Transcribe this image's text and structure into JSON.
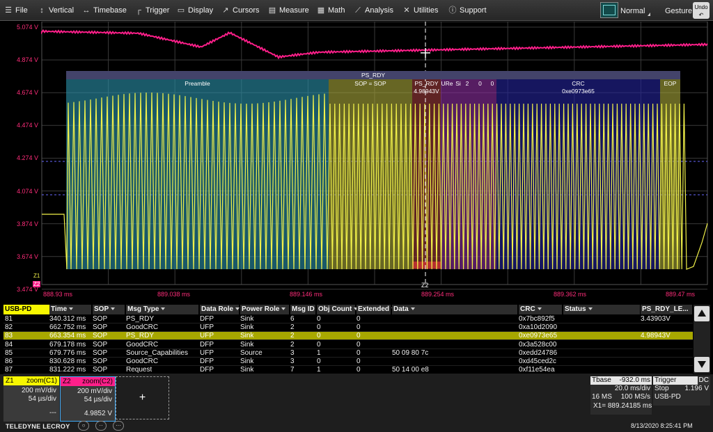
{
  "menu": [
    {
      "label": "File",
      "icon": "menu-icon"
    },
    {
      "label": "Vertical",
      "icon": "vertical-arrows-icon"
    },
    {
      "label": "Timebase",
      "icon": "horizontal-arrows-icon"
    },
    {
      "label": "Trigger",
      "icon": "trigger-icon"
    },
    {
      "label": "Display",
      "icon": "display-icon"
    },
    {
      "label": "Cursors",
      "icon": "cursor-icon"
    },
    {
      "label": "Measure",
      "icon": "ruler-icon"
    },
    {
      "label": "Math",
      "icon": "calculator-icon"
    },
    {
      "label": "Analysis",
      "icon": "chart-icon"
    },
    {
      "label": "Utilities",
      "icon": "wrench-icon"
    },
    {
      "label": "Support",
      "icon": "info-icon"
    }
  ],
  "toolbar": {
    "mode": "Normal",
    "gesture": "Gesture",
    "undo": "Undo"
  },
  "scope": {
    "v_labels": [
      "5.074 V",
      "4.874 V",
      "4.674 V",
      "4.474 V",
      "4.274 V",
      "4.074 V",
      "3.874 V",
      "3.674 V",
      "3.474 V"
    ],
    "t_labels": [
      "888.93 ms",
      "889.038 ms",
      "889.146 ms",
      "889.254 ms",
      "889.362 ms",
      "889.47 ms"
    ],
    "z1": "Z1",
    "z2": "Z2",
    "z2_bottom": "Z2",
    "colors": {
      "c1": "#f2f24a",
      "c2": "#ff1f8a",
      "grid": "#3a3a3a"
    },
    "decode": {
      "packet": "PS_RDY",
      "fields": [
        {
          "label": "Preamble",
          "color": "#2a8fa8"
        },
        {
          "label": "SOP = SOP",
          "color": "#a7a43a"
        },
        {
          "label": "PS_RDY",
          "color": "#9a3a3a"
        },
        {
          "label": "URe",
          "color": "#8a2e9e"
        },
        {
          "label": "Si",
          "color": "#8a2e9e"
        },
        {
          "label": "2",
          "color": "#8a2e9e"
        },
        {
          "label": "0",
          "color": "#8a2e9e"
        },
        {
          "label": "0",
          "color": "#8a2e9e"
        },
        {
          "label": "CRC",
          "color": "#23239a"
        },
        {
          "label": "EOP",
          "color": "#a7a43a"
        }
      ],
      "crc_value": "0xe0973e65",
      "cursor_value": "4.98943V"
    }
  },
  "table": {
    "protocol": "USB-PD",
    "columns": [
      "Time",
      "SOP",
      "Msg Type",
      "Data Role",
      "Power Role",
      "Msg ID",
      "Obj Count",
      "Extended",
      "Data",
      "CRC",
      "Status",
      "PS_RDY_LE..."
    ],
    "rows": [
      [
        "81",
        "340.312 ms",
        "SOP",
        "PS_RDY",
        "DFP",
        "Sink",
        "6",
        "0",
        "0",
        "",
        "0x7bc892f5",
        "",
        "3.43903V"
      ],
      [
        "82",
        "662.752 ms",
        "SOP",
        "GoodCRC",
        "UFP",
        "Sink",
        "2",
        "0",
        "0",
        "",
        "0xa10d2090",
        "",
        ""
      ],
      [
        "83",
        "663.354 ms",
        "SOP",
        "PS_RDY",
        "UFP",
        "Sink",
        "2",
        "0",
        "0",
        "",
        "0xe0973e65",
        "",
        "4.98943V"
      ],
      [
        "84",
        "679.178 ms",
        "SOP",
        "GoodCRC",
        "DFP",
        "Sink",
        "2",
        "0",
        "0",
        "",
        "0x3a528c00",
        "",
        ""
      ],
      [
        "85",
        "679.776 ms",
        "SOP",
        "Source_Capabilities",
        "UFP",
        "Source",
        "3",
        "1",
        "0",
        "50 09 80 7c",
        "0xedd24786",
        "",
        ""
      ],
      [
        "86",
        "830.628 ms",
        "SOP",
        "GoodCRC",
        "DFP",
        "Sink",
        "3",
        "0",
        "0",
        "",
        "0xd45ced2c",
        "",
        ""
      ],
      [
        "87",
        "831.222 ms",
        "SOP",
        "Request",
        "DFP",
        "Sink",
        "7",
        "1",
        "0",
        "50 14 00 e8",
        "0xf11e54ea",
        "",
        ""
      ]
    ],
    "selected_row": 2
  },
  "descriptors": {
    "z1": {
      "name": "Z1",
      "src": "zoom(C1)",
      "vdiv": "200 mV/div",
      "tdiv": "54 µs/div",
      "val": "---"
    },
    "z2": {
      "name": "Z2",
      "src": "zoom(C2)",
      "vdiv": "200 mV/div",
      "tdiv": "54 µs/div",
      "val": "4.9852 V"
    },
    "add": "+"
  },
  "timebase": {
    "title": "Tbase",
    "offset": "-932.0 ms",
    "div": "20.0 ms/div",
    "samples": "16 MS",
    "rate": "100 MS/s"
  },
  "trigger": {
    "title": "Trigger",
    "coupling": "DC",
    "mode": "Stop",
    "level": "1.196 V",
    "source": "USB-PD"
  },
  "cursor": {
    "x1": "X1=",
    "x1_value": "889.24185 ms"
  },
  "brand": "TELEDYNE LECROY",
  "datetime": "8/13/2020 8:25:41 PM"
}
